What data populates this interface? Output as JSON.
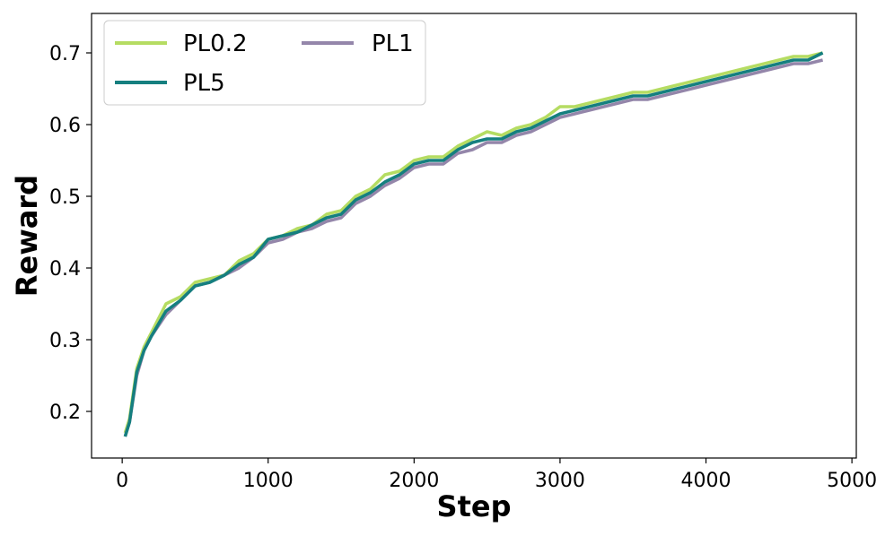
{
  "chart_data": {
    "type": "line",
    "xlabel": "Step",
    "ylabel": "Reward",
    "xlim": [
      -210,
      5030
    ],
    "ylim": [
      0.135,
      0.755
    ],
    "xticks": [
      0,
      1000,
      2000,
      3000,
      4000,
      5000
    ],
    "yticks": [
      0.2,
      0.3,
      0.4,
      0.5,
      0.6,
      0.7
    ],
    "xtick_labels": [
      "0",
      "1000",
      "2000",
      "3000",
      "4000",
      "5000"
    ],
    "ytick_labels": [
      "0.2",
      "0.3",
      "0.4",
      "0.5",
      "0.6",
      "0.7"
    ],
    "grid": false,
    "legend_position": "top-left",
    "legend_columns": 2,
    "x": [
      20,
      50,
      100,
      150,
      200,
      300,
      400,
      500,
      600,
      700,
      800,
      900,
      1000,
      1100,
      1200,
      1300,
      1400,
      1500,
      1600,
      1700,
      1800,
      1900,
      2000,
      2100,
      2200,
      2300,
      2400,
      2500,
      2600,
      2700,
      2800,
      2900,
      3000,
      3100,
      3200,
      3300,
      3400,
      3500,
      3600,
      3700,
      3800,
      3900,
      4000,
      4100,
      4200,
      4300,
      4400,
      4500,
      4600,
      4700,
      4800
    ],
    "series": [
      {
        "name": "PL0.2",
        "color": "#b5dc62",
        "values": [
          0.17,
          0.19,
          0.26,
          0.29,
          0.31,
          0.35,
          0.36,
          0.38,
          0.385,
          0.39,
          0.41,
          0.42,
          0.44,
          0.445,
          0.455,
          0.46,
          0.475,
          0.48,
          0.5,
          0.51,
          0.53,
          0.535,
          0.55,
          0.555,
          0.555,
          0.57,
          0.58,
          0.59,
          0.585,
          0.595,
          0.6,
          0.61,
          0.625,
          0.625,
          0.63,
          0.635,
          0.64,
          0.645,
          0.645,
          0.65,
          0.655,
          0.66,
          0.665,
          0.67,
          0.675,
          0.68,
          0.685,
          0.69,
          0.695,
          0.695,
          0.7
        ]
      },
      {
        "name": "PL1",
        "color": "#9486aa",
        "values": [
          0.165,
          0.185,
          0.25,
          0.285,
          0.305,
          0.335,
          0.355,
          0.375,
          0.38,
          0.39,
          0.4,
          0.415,
          0.435,
          0.44,
          0.45,
          0.455,
          0.465,
          0.47,
          0.49,
          0.5,
          0.515,
          0.525,
          0.54,
          0.545,
          0.545,
          0.56,
          0.565,
          0.575,
          0.575,
          0.585,
          0.59,
          0.6,
          0.61,
          0.615,
          0.62,
          0.625,
          0.63,
          0.635,
          0.635,
          0.64,
          0.645,
          0.65,
          0.655,
          0.66,
          0.665,
          0.67,
          0.675,
          0.68,
          0.685,
          0.685,
          0.69
        ]
      },
      {
        "name": "PL5",
        "color": "#157f7f",
        "values": [
          0.165,
          0.185,
          0.255,
          0.285,
          0.305,
          0.34,
          0.355,
          0.375,
          0.38,
          0.39,
          0.405,
          0.415,
          0.44,
          0.445,
          0.45,
          0.46,
          0.47,
          0.475,
          0.495,
          0.505,
          0.52,
          0.53,
          0.545,
          0.55,
          0.55,
          0.565,
          0.575,
          0.58,
          0.58,
          0.59,
          0.595,
          0.605,
          0.615,
          0.62,
          0.625,
          0.63,
          0.635,
          0.64,
          0.64,
          0.645,
          0.65,
          0.655,
          0.66,
          0.665,
          0.67,
          0.675,
          0.68,
          0.685,
          0.69,
          0.69,
          0.7
        ]
      }
    ]
  }
}
